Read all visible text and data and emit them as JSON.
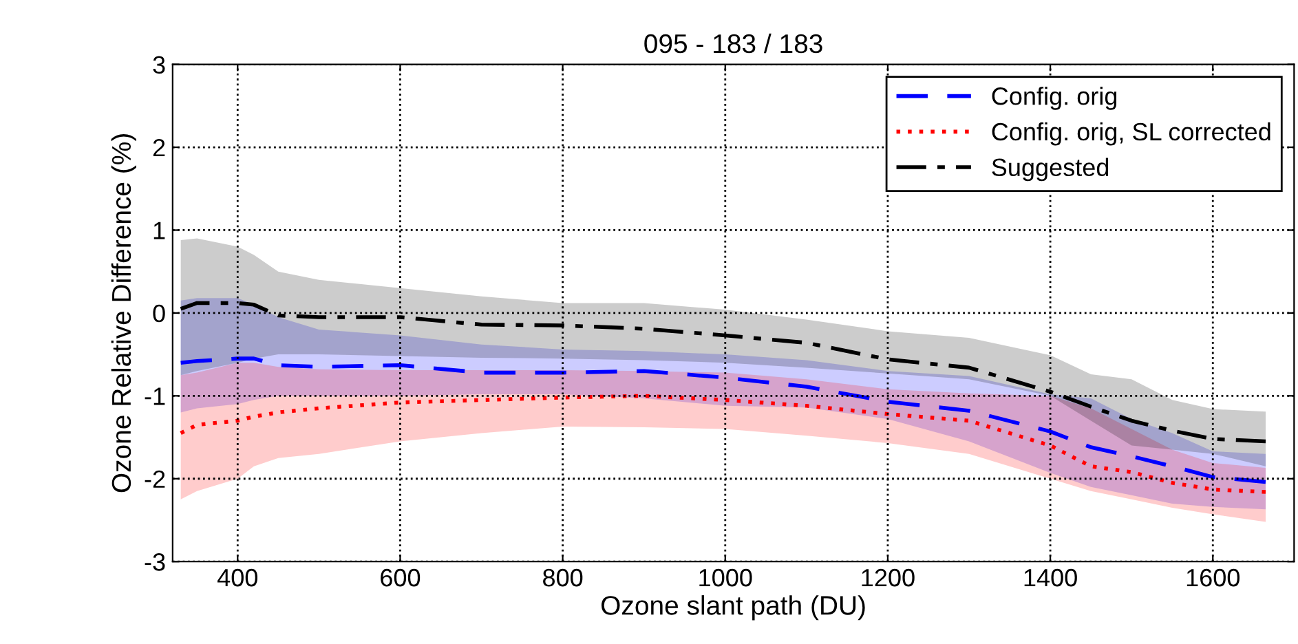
{
  "chart_data": {
    "type": "line",
    "title": "095 - 183 / 183",
    "xlabel": "Ozone slant path (DU)",
    "ylabel": "Ozone Relative Difference (%)",
    "x": [
      330,
      350,
      400,
      420,
      450,
      500,
      600,
      700,
      800,
      900,
      1000,
      1100,
      1200,
      1300,
      1400,
      1450,
      1500,
      1550,
      1600,
      1665
    ],
    "series": [
      {
        "name": "Config. orig",
        "color": "#0000ff",
        "line_style": "dashed",
        "values": [
          -0.6,
          -0.58,
          -0.55,
          -0.55,
          -0.63,
          -0.65,
          -0.63,
          -0.72,
          -0.72,
          -0.7,
          -0.78,
          -0.89,
          -1.07,
          -1.18,
          -1.43,
          -1.62,
          -1.73,
          -1.85,
          -1.98,
          -2.04
        ],
        "upper": [
          0.15,
          0.18,
          0.18,
          0.1,
          -0.05,
          -0.2,
          -0.27,
          -0.38,
          -0.44,
          -0.46,
          -0.5,
          -0.57,
          -0.7,
          -0.76,
          -0.98,
          -1.03,
          -1.28,
          -1.45,
          -1.67,
          -1.7
        ],
        "lower": [
          -1.2,
          -1.15,
          -1.1,
          -1.05,
          -1.0,
          -1.0,
          -1.0,
          -0.98,
          -0.98,
          -1.03,
          -1.12,
          -1.14,
          -1.28,
          -1.55,
          -1.93,
          -2.1,
          -2.2,
          -2.3,
          -2.34,
          -2.37
        ]
      },
      {
        "name": "Config. orig, SL corrected",
        "color": "#ff0000",
        "line_style": "dotted",
        "values": [
          -1.45,
          -1.35,
          -1.3,
          -1.25,
          -1.2,
          -1.15,
          -1.08,
          -1.05,
          -1.02,
          -1.0,
          -1.05,
          -1.12,
          -1.22,
          -1.3,
          -1.6,
          -1.85,
          -1.92,
          -2.05,
          -2.13,
          -2.16
        ],
        "upper": [
          -0.75,
          -0.72,
          -0.6,
          -0.6,
          -0.65,
          -0.68,
          -0.69,
          -0.69,
          -0.69,
          -0.7,
          -0.72,
          -0.8,
          -0.92,
          -0.97,
          -1.0,
          -1.15,
          -1.4,
          -1.65,
          -1.81,
          -1.87
        ],
        "lower": [
          -2.25,
          -2.15,
          -2.0,
          -1.85,
          -1.75,
          -1.7,
          -1.55,
          -1.45,
          -1.37,
          -1.38,
          -1.4,
          -1.48,
          -1.57,
          -1.7,
          -2.0,
          -2.15,
          -2.25,
          -2.35,
          -2.43,
          -2.52
        ]
      },
      {
        "name": "Suggested",
        "color": "#000000",
        "line_style": "dashdot",
        "values": [
          0.05,
          0.12,
          0.12,
          0.1,
          -0.03,
          -0.05,
          -0.05,
          -0.14,
          -0.15,
          -0.19,
          -0.27,
          -0.36,
          -0.56,
          -0.66,
          -0.95,
          -1.13,
          -1.3,
          -1.42,
          -1.52,
          -1.55
        ],
        "upper": [
          0.88,
          0.9,
          0.8,
          0.7,
          0.5,
          0.4,
          0.3,
          0.2,
          0.12,
          0.12,
          0.04,
          -0.08,
          -0.22,
          -0.3,
          -0.51,
          -0.74,
          -0.8,
          -1.05,
          -1.16,
          -1.19
        ],
        "lower": [
          -0.75,
          -0.7,
          -0.6,
          -0.55,
          -0.5,
          -0.5,
          -0.52,
          -0.54,
          -0.55,
          -0.57,
          -0.6,
          -0.66,
          -0.73,
          -0.8,
          -1.0,
          -1.3,
          -1.6,
          -1.65,
          -1.7,
          -1.85
        ]
      }
    ],
    "xlim": [
      320,
      1700
    ],
    "xticks": [
      400,
      600,
      800,
      1000,
      1200,
      1400,
      1600
    ],
    "ylim": [
      -3,
      3
    ],
    "yticks": [
      -3,
      -2,
      -1,
      0,
      1,
      2,
      3
    ],
    "grid": true,
    "legend": "top right",
    "marker": "none"
  }
}
